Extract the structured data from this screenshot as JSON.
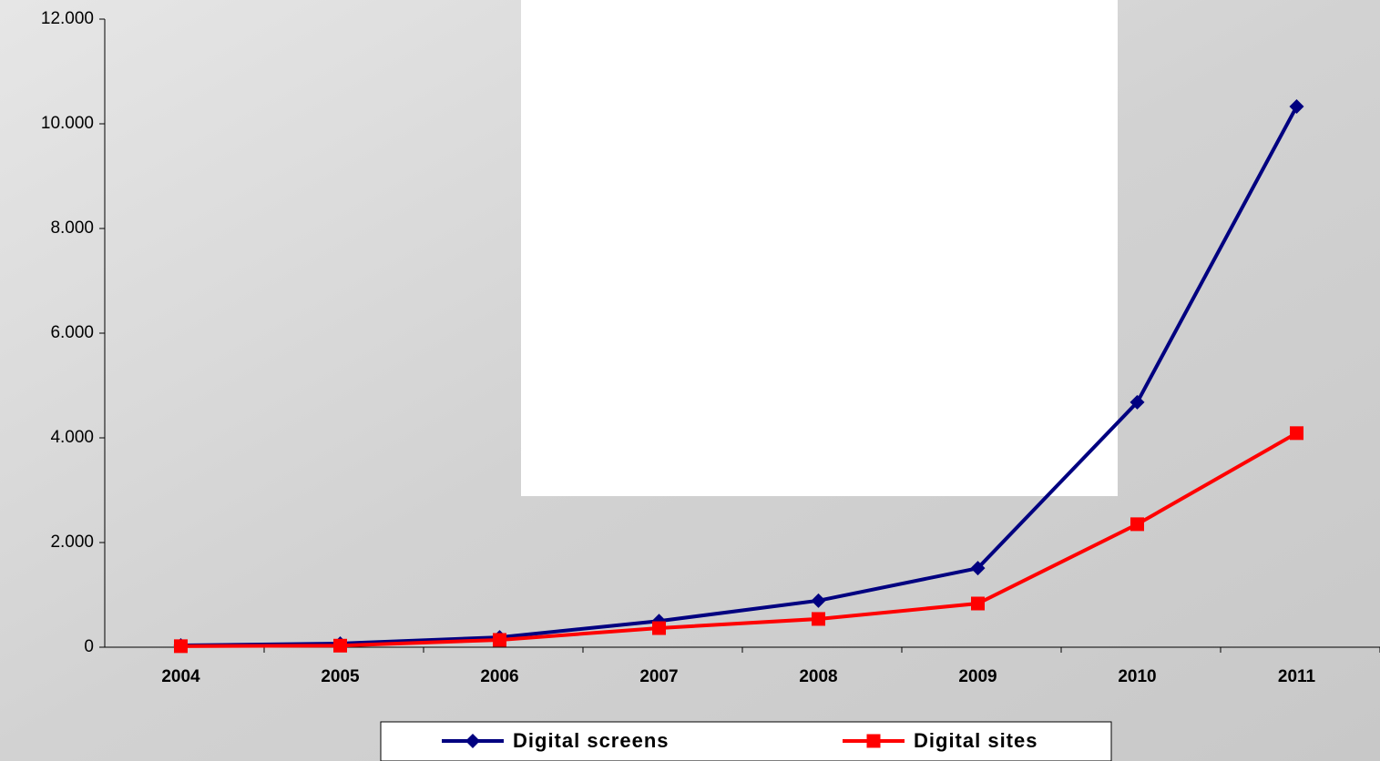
{
  "chart_data": {
    "type": "line",
    "categories": [
      "2004",
      "2005",
      "2006",
      "2007",
      "2008",
      "2009",
      "2010",
      "2011"
    ],
    "series": [
      {
        "name": "Digital screens",
        "color": "#000080",
        "marker": "diamond",
        "values": [
          35,
          70,
          190,
          500,
          890,
          1510,
          4680,
          10330
        ]
      },
      {
        "name": "Digital sites",
        "color": "#ff0000",
        "marker": "square",
        "values": [
          20,
          30,
          140,
          365,
          540,
          835,
          2350,
          4090
        ]
      }
    ],
    "ylim": [
      0,
      12000
    ],
    "yticks": [
      0,
      {
        "value": 2000,
        "label": "2.000"
      },
      {
        "value": 4000,
        "label": "4.000"
      },
      {
        "value": 6000,
        "label": "6.000"
      },
      {
        "value": 8000,
        "label": "8.000"
      },
      {
        "value": 10000,
        "label": "10.000"
      },
      {
        "value": 12000,
        "label": "12.000"
      }
    ],
    "grid": false,
    "legend": "bottom"
  }
}
